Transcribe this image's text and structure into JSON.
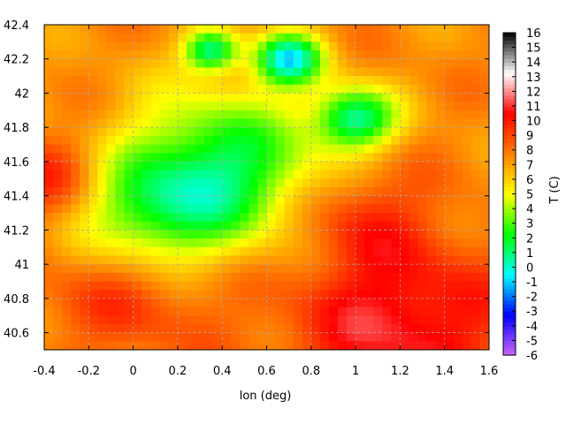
{
  "chart_data": {
    "type": "heatmap",
    "title": "",
    "xlabel": "lon (deg)",
    "ylabel": "",
    "colorbar_label": "T (C)",
    "xlim": [
      -0.4,
      1.6
    ],
    "ylim": [
      40.5,
      42.4
    ],
    "x_ticks": [
      "-0.4",
      "-0.2",
      "0",
      "0.2",
      "0.4",
      "0.6",
      "0.8",
      "1",
      "1.2",
      "1.4",
      "1.6"
    ],
    "y_ticks": [
      "40.6",
      "40.8",
      "41",
      "41.2",
      "41.4",
      "41.6",
      "41.8",
      "42",
      "42.2",
      "42.4"
    ],
    "colorbar_ticks": [
      "-6",
      "-5",
      "-4",
      "-3",
      "-2",
      "-1",
      "0",
      "1",
      "2",
      "3",
      "4",
      "5",
      "6",
      "7",
      "8",
      "9",
      "10",
      "11",
      "12",
      "13",
      "14",
      "15",
      "16"
    ],
    "colorbar_range": [
      -6,
      16
    ],
    "grid": true,
    "contour_lines": true,
    "colormap": [
      "#cc66ff",
      "#0000ff",
      "#00ffff",
      "#00ff00",
      "#ffff00",
      "#ff8000",
      "#ff0000",
      "#ffffff",
      "#000000"
    ],
    "features": [
      {
        "lon": 0.4,
        "lat": 41.55,
        "T": 1.5,
        "r": 0.45
      },
      {
        "lon": 0.05,
        "lat": 41.25,
        "T": 3.0,
        "r": 0.35
      },
      {
        "lon": 0.7,
        "lat": 42.2,
        "T": 0.0,
        "r": 0.15
      },
      {
        "lon": 1.0,
        "lat": 41.85,
        "T": 1.0,
        "r": 0.18
      },
      {
        "lon": 0.35,
        "lat": 42.25,
        "T": 1.0,
        "r": 0.12
      },
      {
        "lon": 1.2,
        "lat": 40.65,
        "T": 11.0,
        "r": 0.5
      },
      {
        "lon": 0.0,
        "lat": 40.9,
        "T": 10.0,
        "r": 0.4
      },
      {
        "lon": -0.35,
        "lat": 41.5,
        "T": 10.0,
        "r": 0.25
      },
      {
        "lon": 1.0,
        "lat": 41.3,
        "T": 9.5,
        "r": 0.3
      }
    ],
    "background_T": 7.5
  }
}
